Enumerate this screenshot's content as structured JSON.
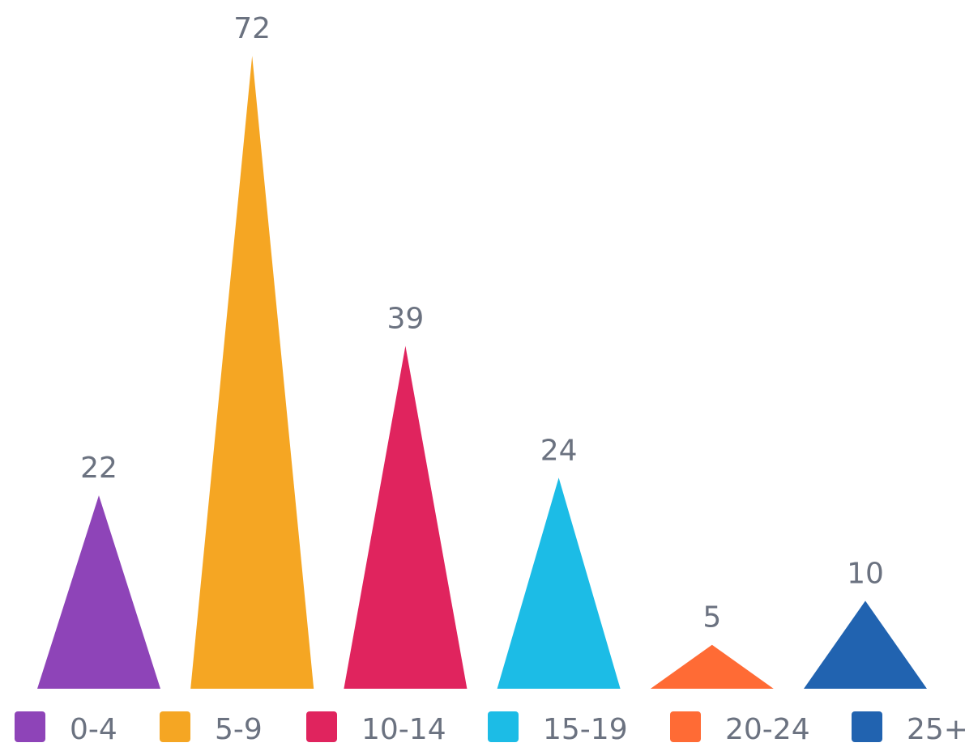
{
  "chart_data": {
    "type": "bar",
    "bar_shape": "triangle",
    "categories": [
      "0-4",
      "5-9",
      "10-14",
      "15-19",
      "20-24",
      "25+"
    ],
    "values": [
      22,
      72,
      39,
      24,
      5,
      10
    ],
    "colors": [
      "#8e44b8",
      "#f5a623",
      "#e0245e",
      "#1cbce6",
      "#ff6b35",
      "#2163b0"
    ],
    "title": "",
    "xlabel": "",
    "ylabel": "",
    "ylim": [
      0,
      72
    ],
    "grid": false,
    "legend": "bottom",
    "data_labels": true
  }
}
